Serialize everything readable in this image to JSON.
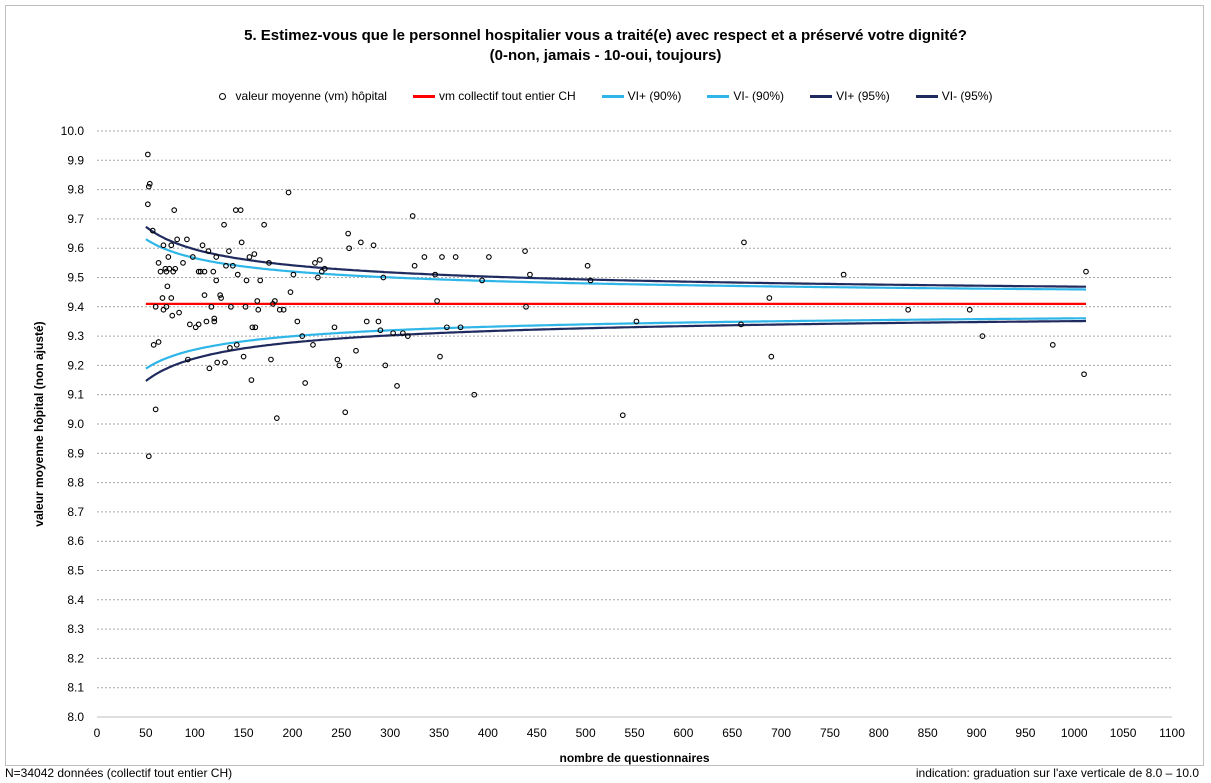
{
  "chart_data": {
    "type": "scatter",
    "title": "5. Estimez-vous que le personnel hospitalier vous a traité(e) avec respect et a préservé votre dignité?",
    "subtitle": "(0-non, jamais - 10-oui, toujours)",
    "xlabel": "nombre de questionnaires",
    "ylabel": "valeur moyenne hôpital (non ajusté)",
    "xlim": [
      0,
      1100
    ],
    "ylim": [
      8.0,
      10.0
    ],
    "xticks": [
      0,
      50,
      100,
      150,
      200,
      250,
      300,
      350,
      400,
      450,
      500,
      550,
      600,
      650,
      700,
      750,
      800,
      850,
      900,
      950,
      1000,
      1050,
      1100
    ],
    "yticks": [
      8.0,
      8.1,
      8.2,
      8.3,
      8.4,
      8.5,
      8.6,
      8.7,
      8.8,
      8.9,
      9.0,
      9.1,
      9.2,
      9.3,
      9.4,
      9.5,
      9.6,
      9.7,
      9.8,
      9.9,
      10.0
    ],
    "grid": true,
    "legend_position": "top",
    "mean": 9.41,
    "series": [
      {
        "name": "valeur moyenne (vm) hôpital",
        "kind": "scatter",
        "color": "#000000",
        "points": [
          [
            52,
            9.92
          ],
          [
            53,
            9.81
          ],
          [
            54,
            9.82
          ],
          [
            52,
            9.75
          ],
          [
            53,
            8.89
          ],
          [
            57,
            9.66
          ],
          [
            60,
            9.05
          ],
          [
            58,
            9.27
          ],
          [
            60,
            9.4
          ],
          [
            63,
            9.55
          ],
          [
            63,
            9.28
          ],
          [
            65,
            9.52
          ],
          [
            68,
            9.61
          ],
          [
            67,
            9.43
          ],
          [
            68,
            9.39
          ],
          [
            70,
            9.53
          ],
          [
            71,
            9.4
          ],
          [
            71,
            9.52
          ],
          [
            72,
            9.47
          ],
          [
            73,
            9.57
          ],
          [
            74,
            9.53
          ],
          [
            76,
            9.61
          ],
          [
            76,
            9.43
          ],
          [
            77,
            9.37
          ],
          [
            78,
            9.52
          ],
          [
            79,
            9.73
          ],
          [
            80,
            9.53
          ],
          [
            82,
            9.63
          ],
          [
            84,
            9.38
          ],
          [
            88,
            9.55
          ],
          [
            92,
            9.63
          ],
          [
            93,
            9.22
          ],
          [
            95,
            9.34
          ],
          [
            98,
            9.57
          ],
          [
            101,
            9.33
          ],
          [
            104,
            9.34
          ],
          [
            104,
            9.52
          ],
          [
            106,
            9.52
          ],
          [
            108,
            9.61
          ],
          [
            110,
            9.52
          ],
          [
            110,
            9.44
          ],
          [
            112,
            9.35
          ],
          [
            114,
            9.59
          ],
          [
            115,
            9.19
          ],
          [
            117,
            9.4
          ],
          [
            119,
            9.52
          ],
          [
            120,
            9.36
          ],
          [
            120,
            9.35
          ],
          [
            122,
            9.57
          ],
          [
            122,
            9.49
          ],
          [
            123,
            9.21
          ],
          [
            126,
            9.44
          ],
          [
            127,
            9.43
          ],
          [
            130,
            9.68
          ],
          [
            131,
            9.21
          ],
          [
            132,
            9.54
          ],
          [
            135,
            9.59
          ],
          [
            136,
            9.26
          ],
          [
            137,
            9.4
          ],
          [
            139,
            9.54
          ],
          [
            142,
            9.73
          ],
          [
            143,
            9.27
          ],
          [
            144,
            9.51
          ],
          [
            147,
            9.73
          ],
          [
            148,
            9.62
          ],
          [
            150,
            9.23
          ],
          [
            152,
            9.4
          ],
          [
            153,
            9.49
          ],
          [
            156,
            9.57
          ],
          [
            158,
            9.15
          ],
          [
            159,
            9.33
          ],
          [
            161,
            9.58
          ],
          [
            162,
            9.33
          ],
          [
            164,
            9.42
          ],
          [
            165,
            9.39
          ],
          [
            167,
            9.49
          ],
          [
            171,
            9.68
          ],
          [
            176,
            9.55
          ],
          [
            178,
            9.22
          ],
          [
            180,
            9.41
          ],
          [
            182,
            9.42
          ],
          [
            184,
            9.02
          ],
          [
            187,
            9.39
          ],
          [
            191,
            9.39
          ],
          [
            196,
            9.79
          ],
          [
            198,
            9.45
          ],
          [
            201,
            9.51
          ],
          [
            205,
            9.35
          ],
          [
            210,
            9.3
          ],
          [
            213,
            9.14
          ],
          [
            221,
            9.27
          ],
          [
            223,
            9.55
          ],
          [
            226,
            9.5
          ],
          [
            228,
            9.56
          ],
          [
            230,
            9.52
          ],
          [
            233,
            9.53
          ],
          [
            243,
            9.33
          ],
          [
            246,
            9.22
          ],
          [
            248,
            9.2
          ],
          [
            254,
            9.04
          ],
          [
            257,
            9.65
          ],
          [
            258,
            9.6
          ],
          [
            265,
            9.25
          ],
          [
            270,
            9.62
          ],
          [
            276,
            9.35
          ],
          [
            283,
            9.61
          ],
          [
            288,
            9.35
          ],
          [
            290,
            9.32
          ],
          [
            293,
            9.5
          ],
          [
            295,
            9.2
          ],
          [
            303,
            9.31
          ],
          [
            307,
            9.13
          ],
          [
            313,
            9.31
          ],
          [
            318,
            9.3
          ],
          [
            323,
            9.71
          ],
          [
            325,
            9.54
          ],
          [
            335,
            9.57
          ],
          [
            346,
            9.51
          ],
          [
            348,
            9.42
          ],
          [
            351,
            9.23
          ],
          [
            353,
            9.57
          ],
          [
            358,
            9.33
          ],
          [
            367,
            9.57
          ],
          [
            372,
            9.33
          ],
          [
            386,
            9.1
          ],
          [
            394,
            9.49
          ],
          [
            401,
            9.57
          ],
          [
            438,
            9.59
          ],
          [
            439,
            9.4
          ],
          [
            443,
            9.51
          ],
          [
            502,
            9.54
          ],
          [
            505,
            9.49
          ],
          [
            538,
            9.03
          ],
          [
            552,
            9.35
          ],
          [
            659,
            9.34
          ],
          [
            662,
            9.62
          ],
          [
            688,
            9.43
          ],
          [
            690,
            9.23
          ],
          [
            764,
            9.51
          ],
          [
            830,
            9.39
          ],
          [
            893,
            9.39
          ],
          [
            906,
            9.3
          ],
          [
            978,
            9.27
          ],
          [
            1010,
            9.17
          ],
          [
            1012,
            9.52
          ]
        ]
      },
      {
        "name": "vm collectif tout entier CH",
        "kind": "hline",
        "color": "#ff0000"
      },
      {
        "name": "VI+ (90%)",
        "kind": "limit",
        "color": "#2eb6e8",
        "z": 1.645,
        "sign": 1
      },
      {
        "name": "VI- (90%)",
        "kind": "limit",
        "color": "#2eb6e8",
        "z": 1.645,
        "sign": -1
      },
      {
        "name": "VI+ (95%)",
        "kind": "limit",
        "color": "#1f2a5e",
        "z": 1.96,
        "sign": 1
      },
      {
        "name": "VI- (95%)",
        "kind": "limit",
        "color": "#1f2a5e",
        "z": 1.96,
        "sign": -1
      }
    ]
  },
  "footer": {
    "left": "N=34042 données (collectif tout entier CH)",
    "right": "indication: graduation sur l'axe verticale de 8.0 – 10.0"
  }
}
